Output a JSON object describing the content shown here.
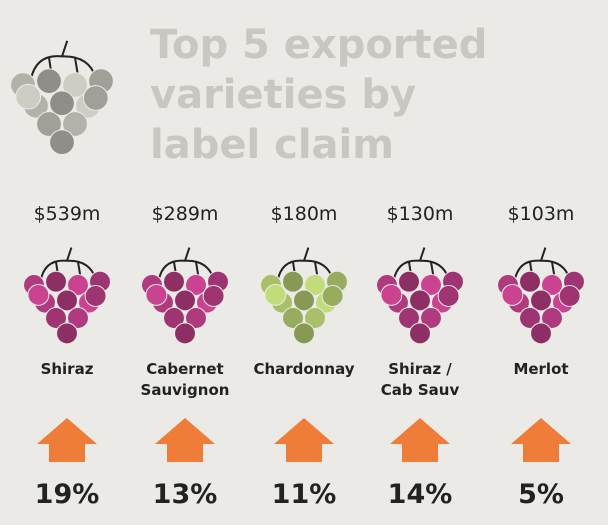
{
  "title": [
    "Top 5 exported",
    "varieties by",
    "label claim"
  ],
  "items": [
    {
      "value": "$539m",
      "name": [
        "Shiraz"
      ],
      "growth": "19%",
      "color": "#b03a7e"
    },
    {
      "value": "$289m",
      "name": [
        "Cabernet",
        "Sauvignon"
      ],
      "growth": "13%",
      "color": "#b03a7e"
    },
    {
      "value": "$180m",
      "name": [
        "Chardonnay"
      ],
      "growth": "11%",
      "color": "#a9bf6a"
    },
    {
      "value": "$130m",
      "name": [
        "Shiraz /",
        "Cab Sauv"
      ],
      "growth": "14%",
      "color": "#b03a7e"
    },
    {
      "value": "$103m",
      "name": [
        "Merlot"
      ],
      "growth": "5%",
      "color": "#b03a7e"
    }
  ]
}
